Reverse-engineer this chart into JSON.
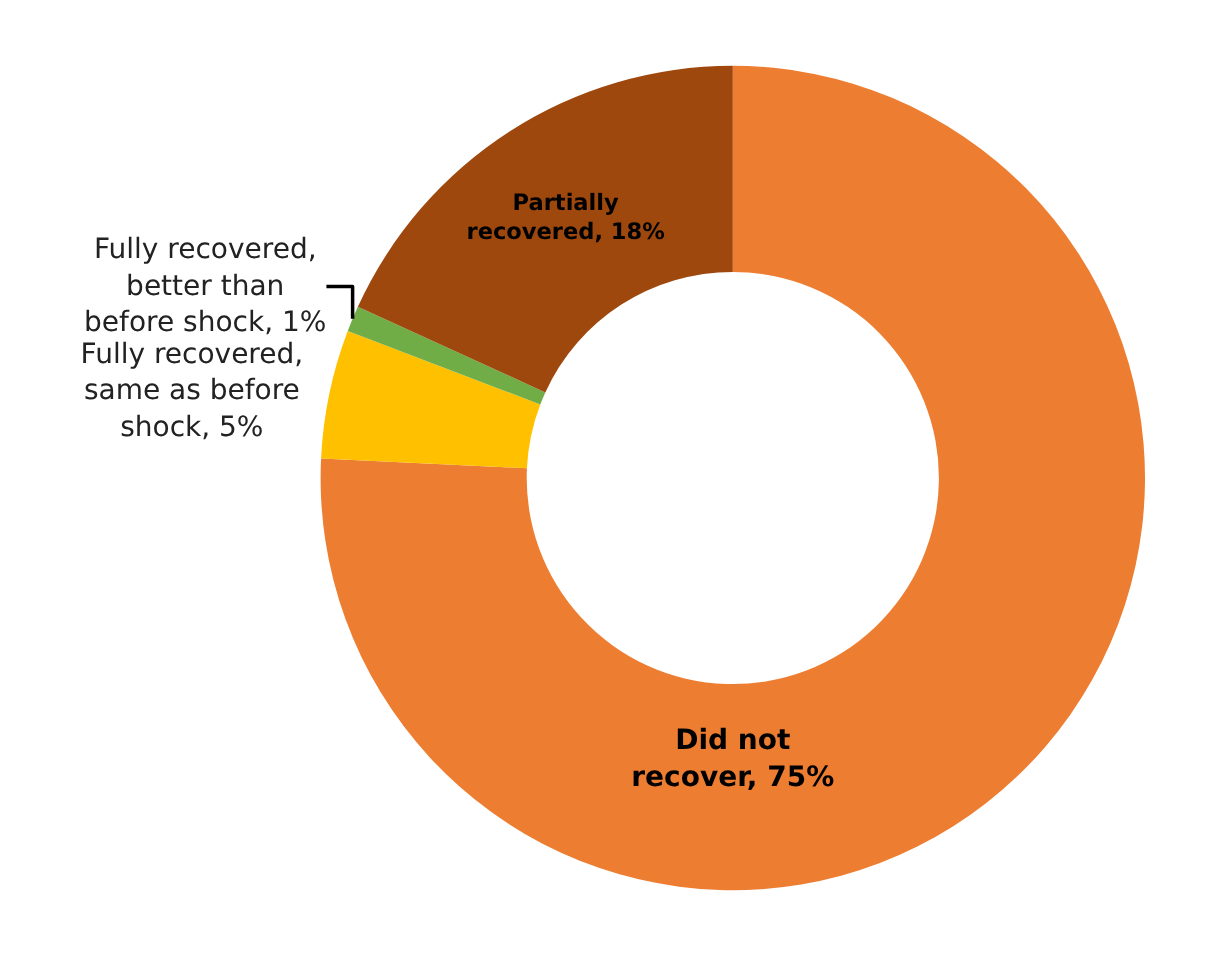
{
  "chart_data": {
    "type": "donut",
    "categories": [
      "Did not recover",
      "Fully recovered, same as before shock",
      "Fully recovered, better than before shock",
      "Partially recovered"
    ],
    "values": [
      75,
      5,
      1,
      18
    ],
    "colors": [
      "#ed7d31",
      "#ffc000",
      "#70ad47",
      "#9e480e"
    ],
    "value_labels": [
      "75%",
      "5%",
      "1%",
      "18%"
    ]
  }
}
